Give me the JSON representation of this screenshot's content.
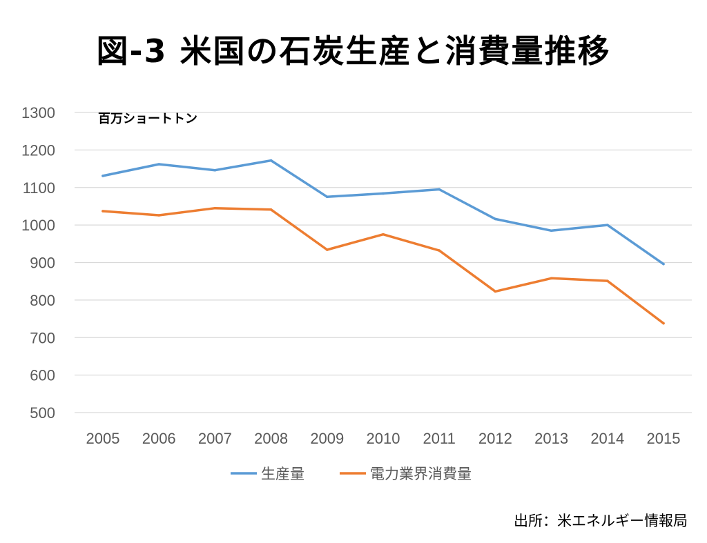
{
  "chart_data": {
    "type": "line",
    "title": "図-3 米国の石炭生産と消費量推移",
    "unit_label": "百万ショートトン",
    "source": "出所：米エネルギー情報局",
    "x": [
      "2005",
      "2006",
      "2007",
      "2008",
      "2009",
      "2010",
      "2011",
      "2012",
      "2013",
      "2014",
      "2015"
    ],
    "ylim": [
      500,
      1300
    ],
    "yticks": [
      500,
      600,
      700,
      800,
      900,
      1000,
      1100,
      1200,
      1300
    ],
    "grid": true,
    "legend_position": "bottom",
    "series": [
      {
        "name": "生産量",
        "color": "#5b9bd5",
        "values": [
          1131,
          1162,
          1146,
          1172,
          1075,
          1084,
          1095,
          1016,
          985,
          1000,
          896
        ]
      },
      {
        "name": "電力業界消費量",
        "color": "#ed7d31",
        "values": [
          1037,
          1026,
          1045,
          1041,
          934,
          975,
          932,
          823,
          858,
          851,
          738
        ]
      }
    ]
  }
}
